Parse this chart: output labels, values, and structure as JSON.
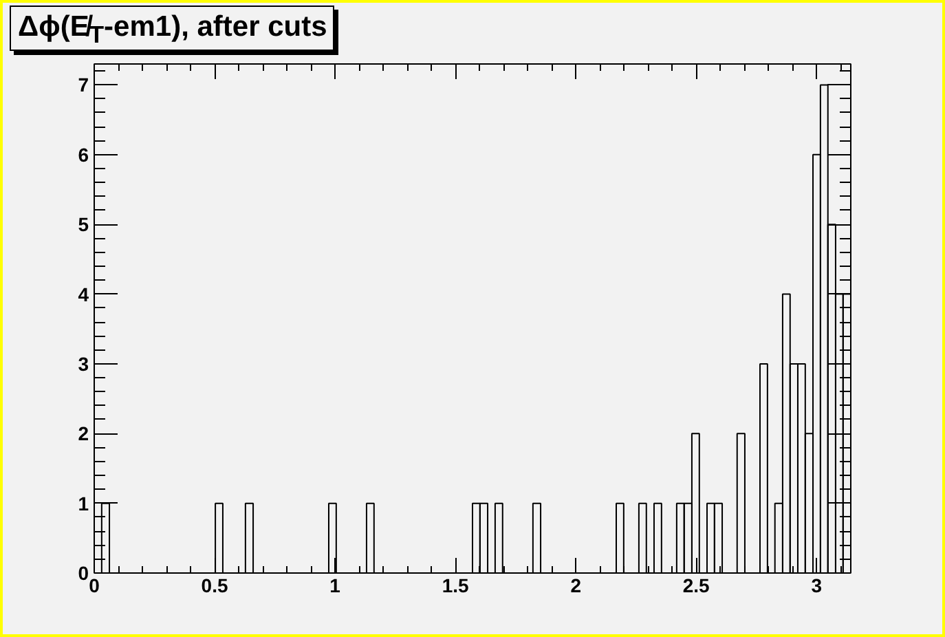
{
  "chart_data": {
    "type": "histogram",
    "title": "Δϕ(E̸$_{T}$-em1), after cuts",
    "bins": [
      0,
      0.031,
      0.063,
      0.094,
      0.126,
      0.157,
      0.188,
      0.22,
      0.251,
      0.283,
      0.314,
      0.346,
      0.377,
      0.408,
      0.44,
      0.471,
      0.503,
      0.534,
      0.565,
      0.597,
      0.628,
      0.66,
      0.691,
      0.723,
      0.754,
      0.785,
      0.817,
      0.848,
      0.88,
      0.911,
      0.942,
      0.974,
      1.005,
      1.037,
      1.068,
      1.1,
      1.131,
      1.162,
      1.194,
      1.225,
      1.257,
      1.288,
      1.319,
      1.351,
      1.382,
      1.414,
      1.445,
      1.477,
      1.508,
      1.539,
      1.571,
      1.602,
      1.634,
      1.665,
      1.696,
      1.728,
      1.759,
      1.791,
      1.822,
      1.854,
      1.885,
      1.916,
      1.948,
      1.979,
      2.011,
      2.042,
      2.073,
      2.105,
      2.136,
      2.168,
      2.199,
      2.231,
      2.262,
      2.293,
      2.325,
      2.356,
      2.388,
      2.419,
      2.45,
      2.482,
      2.513,
      2.545,
      2.576,
      2.608,
      2.639,
      2.67,
      2.702,
      2.733,
      2.765,
      2.796,
      2.827,
      2.859,
      2.89,
      2.922,
      2.953,
      2.985,
      3.016,
      3.047,
      3.079,
      3.11,
      3.142
    ],
    "values": [
      0,
      1,
      0,
      0,
      0,
      0,
      0,
      0,
      0,
      0,
      0,
      0,
      0,
      0,
      0,
      0,
      1,
      0,
      0,
      0,
      1,
      0,
      0,
      0,
      0,
      0,
      0,
      0,
      0,
      0,
      0,
      1,
      0,
      0,
      0,
      0,
      1,
      0,
      0,
      0,
      0,
      0,
      0,
      0,
      0,
      0,
      0,
      0,
      0,
      0,
      1,
      1,
      0,
      1,
      0,
      0,
      0,
      0,
      1,
      0,
      0,
      0,
      0,
      0,
      0,
      0,
      0,
      0,
      0,
      1,
      0,
      0,
      1,
      0,
      1,
      0,
      0,
      1,
      1,
      2,
      0,
      1,
      1,
      0,
      0,
      2,
      0,
      0,
      3,
      0,
      1,
      4,
      3,
      3,
      2,
      6,
      7,
      5,
      4,
      4
    ],
    "color": "#000000",
    "xlim": [
      0,
      3.142
    ],
    "ylim": [
      0,
      7.3
    ],
    "xticks": [
      0,
      0.5,
      1,
      1.5,
      2,
      2.5,
      3
    ],
    "yticks": [
      0,
      1,
      2,
      3,
      4,
      5,
      6,
      7
    ],
    "grid": false
  }
}
